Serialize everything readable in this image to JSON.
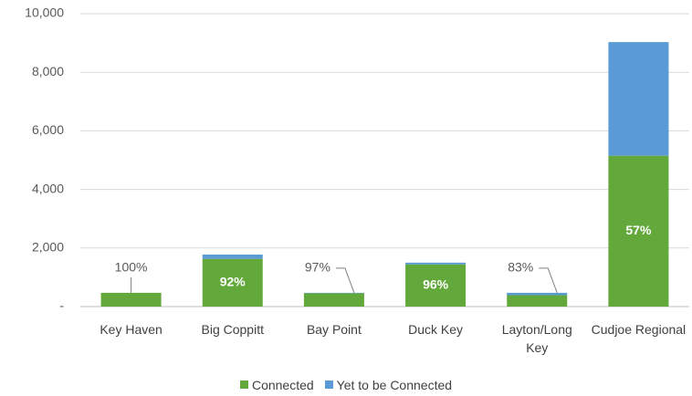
{
  "chart_data": {
    "type": "stacked_bar",
    "categories": [
      "Key Haven",
      "Big Coppitt",
      "Bay Point",
      "Duck Key",
      "Layton/Long Key",
      "Cudjoe Regional"
    ],
    "series": [
      {
        "name": "Connected",
        "color": "#62a83a",
        "values": [
          470,
          1630,
          455,
          1440,
          390,
          5150
        ]
      },
      {
        "name": "Yet to be Connected",
        "color": "#5b9bd5",
        "values": [
          0,
          145,
          15,
          60,
          80,
          3880
        ]
      }
    ],
    "percent_labels": [
      "100%",
      "92%",
      "97%",
      "96%",
      "83%",
      "57%"
    ],
    "ylim": [
      0,
      10000
    ],
    "yticks": [
      {
        "value": 0,
        "label": "-"
      },
      {
        "value": 2000,
        "label": "2,000"
      },
      {
        "value": 4000,
        "label": "4,000"
      },
      {
        "value": 6000,
        "label": "6,000"
      },
      {
        "value": 8000,
        "label": "8,000"
      },
      {
        "value": 10000,
        "label": "10,000"
      }
    ],
    "grid": true,
    "legend": "bottom"
  }
}
